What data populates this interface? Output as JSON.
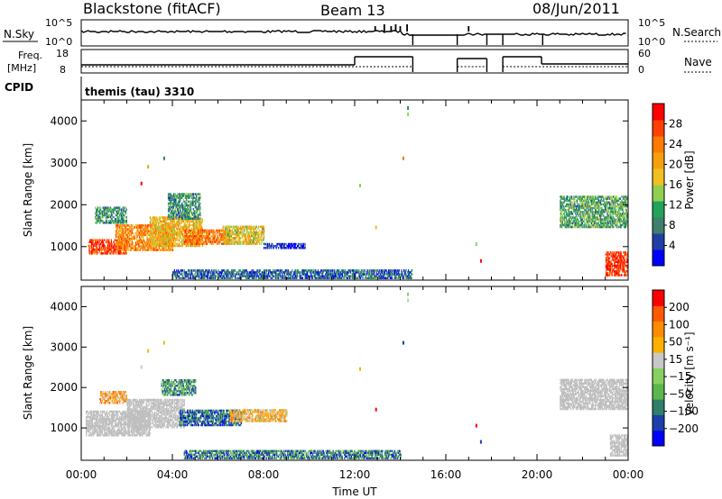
{
  "header": {
    "title": "Blackstone (fitACF)",
    "beam": "Beam 13",
    "date": "08/Jun/2011"
  },
  "strips": {
    "nsky_label": "N.Sky",
    "nsearch_label": "N.Search",
    "nsky_ticks": [
      "10^5",
      "10^0"
    ],
    "nsearch_ticks": [
      "10^5",
      "10^0"
    ],
    "freq_label": "Freq.",
    "freq_unit": "[MHz]",
    "freq_ticks": [
      "18",
      "8"
    ],
    "nave_label": "Nave",
    "nave_ticks": [
      "60",
      "0"
    ],
    "cpid_label": "CPID",
    "cpid_value": "themis (tau) 3310"
  },
  "colors": {
    "power_scale": [
      "#0000ff",
      "#1f3fa6",
      "#3e7f6d",
      "#22a35a",
      "#8fd14f",
      "#f0c020",
      "#f5a010",
      "#ff7a00",
      "#ff4000",
      "#ff0000"
    ],
    "velocity_scale": [
      "#0000ff",
      "#1b3fa8",
      "#2f7f6a",
      "#5ab84a",
      "#88d060",
      "#c8c8c8",
      "#ffb000",
      "#ff8c00",
      "#ff5a00",
      "#ff0000"
    ],
    "ground_scatter": "#bfbfbf"
  },
  "chart_data": [
    {
      "type": "heatmap",
      "title": "",
      "xlabel": "Time UT",
      "ylabel": "Slant Range [km]",
      "xlim": [
        0,
        24
      ],
      "ylim": [
        200,
        4500
      ],
      "xticks": [
        "00:00",
        "04:00",
        "08:00",
        "12:00",
        "16:00",
        "20:00",
        "00:00"
      ],
      "yticks": [
        "1000",
        "2000",
        "3000",
        "4000"
      ],
      "colorbar_label": "Power [dB]",
      "colorbar_ticks": [
        "4",
        "8",
        "12",
        "16",
        "20",
        "24",
        "28"
      ],
      "regions": [
        {
          "t0": 0.3,
          "t1": 2.0,
          "r0": 820,
          "r1": 1160,
          "level": 0.85
        },
        {
          "t0": 1.5,
          "t1": 4.0,
          "r0": 900,
          "r1": 1500,
          "level": 0.7
        },
        {
          "t0": 3.0,
          "t1": 5.3,
          "r0": 1000,
          "r1": 1700,
          "level": 0.6
        },
        {
          "t0": 4.5,
          "t1": 6.5,
          "r0": 1050,
          "r1": 1400,
          "level": 0.75
        },
        {
          "t0": 0.6,
          "t1": 2.0,
          "r0": 1550,
          "r1": 1950,
          "level": 0.3
        },
        {
          "t0": 3.8,
          "t1": 5.2,
          "r0": 1650,
          "r1": 2250,
          "level": 0.3
        },
        {
          "t0": 6.2,
          "t1": 8.0,
          "r0": 1050,
          "r1": 1500,
          "level": 0.55
        },
        {
          "t0": 8.0,
          "t1": 9.8,
          "r0": 950,
          "r1": 1050,
          "level": 0.1
        },
        {
          "t0": 4.0,
          "t1": 14.5,
          "r0": 230,
          "r1": 420,
          "level": 0.2
        },
        {
          "t0": 21.0,
          "t1": 24.0,
          "r0": 1450,
          "r1": 2200,
          "level": 0.35
        },
        {
          "t0": 23.0,
          "t1": 24.0,
          "r0": 300,
          "r1": 850,
          "level": 0.9
        }
      ]
    },
    {
      "type": "heatmap",
      "title": "",
      "xlabel": "Time UT",
      "ylabel": "Slant Range [km]",
      "xlim": [
        0,
        24
      ],
      "ylim": [
        200,
        4500
      ],
      "xticks": [
        "00:00",
        "04:00",
        "08:00",
        "12:00",
        "16:00",
        "20:00",
        "00:00"
      ],
      "yticks": [
        "1000",
        "2000",
        "3000",
        "4000"
      ],
      "colorbar_label": "Velocity [m s⁻¹]",
      "colorbar_ticks": [
        "200",
        "100",
        "50",
        "15",
        "−15",
        "−50",
        "−100",
        "−200"
      ],
      "regions": [
        {
          "t0": 0.2,
          "t1": 3.0,
          "r0": 800,
          "r1": 1400,
          "level": 0.5,
          "ground": true
        },
        {
          "t0": 2.0,
          "t1": 4.5,
          "r0": 1000,
          "r1": 1700,
          "level": 0.5,
          "ground": true
        },
        {
          "t0": 4.3,
          "t1": 7.0,
          "r0": 1050,
          "r1": 1450,
          "level": 0.2
        },
        {
          "t0": 6.5,
          "t1": 9.0,
          "r0": 1150,
          "r1": 1450,
          "level": 0.65
        },
        {
          "t0": 0.8,
          "t1": 2.0,
          "r0": 1600,
          "r1": 1900,
          "level": 0.7
        },
        {
          "t0": 3.5,
          "t1": 5.0,
          "r0": 1800,
          "r1": 2200,
          "level": 0.3
        },
        {
          "t0": 21.0,
          "t1": 24.0,
          "r0": 1450,
          "r1": 2200,
          "level": 0.5,
          "ground": true
        },
        {
          "t0": 23.2,
          "t1": 24.0,
          "r0": 300,
          "r1": 800,
          "level": 0.5,
          "ground": true
        },
        {
          "t0": 4.5,
          "t1": 14.0,
          "r0": 230,
          "r1": 420,
          "level": 0.25
        }
      ]
    }
  ]
}
